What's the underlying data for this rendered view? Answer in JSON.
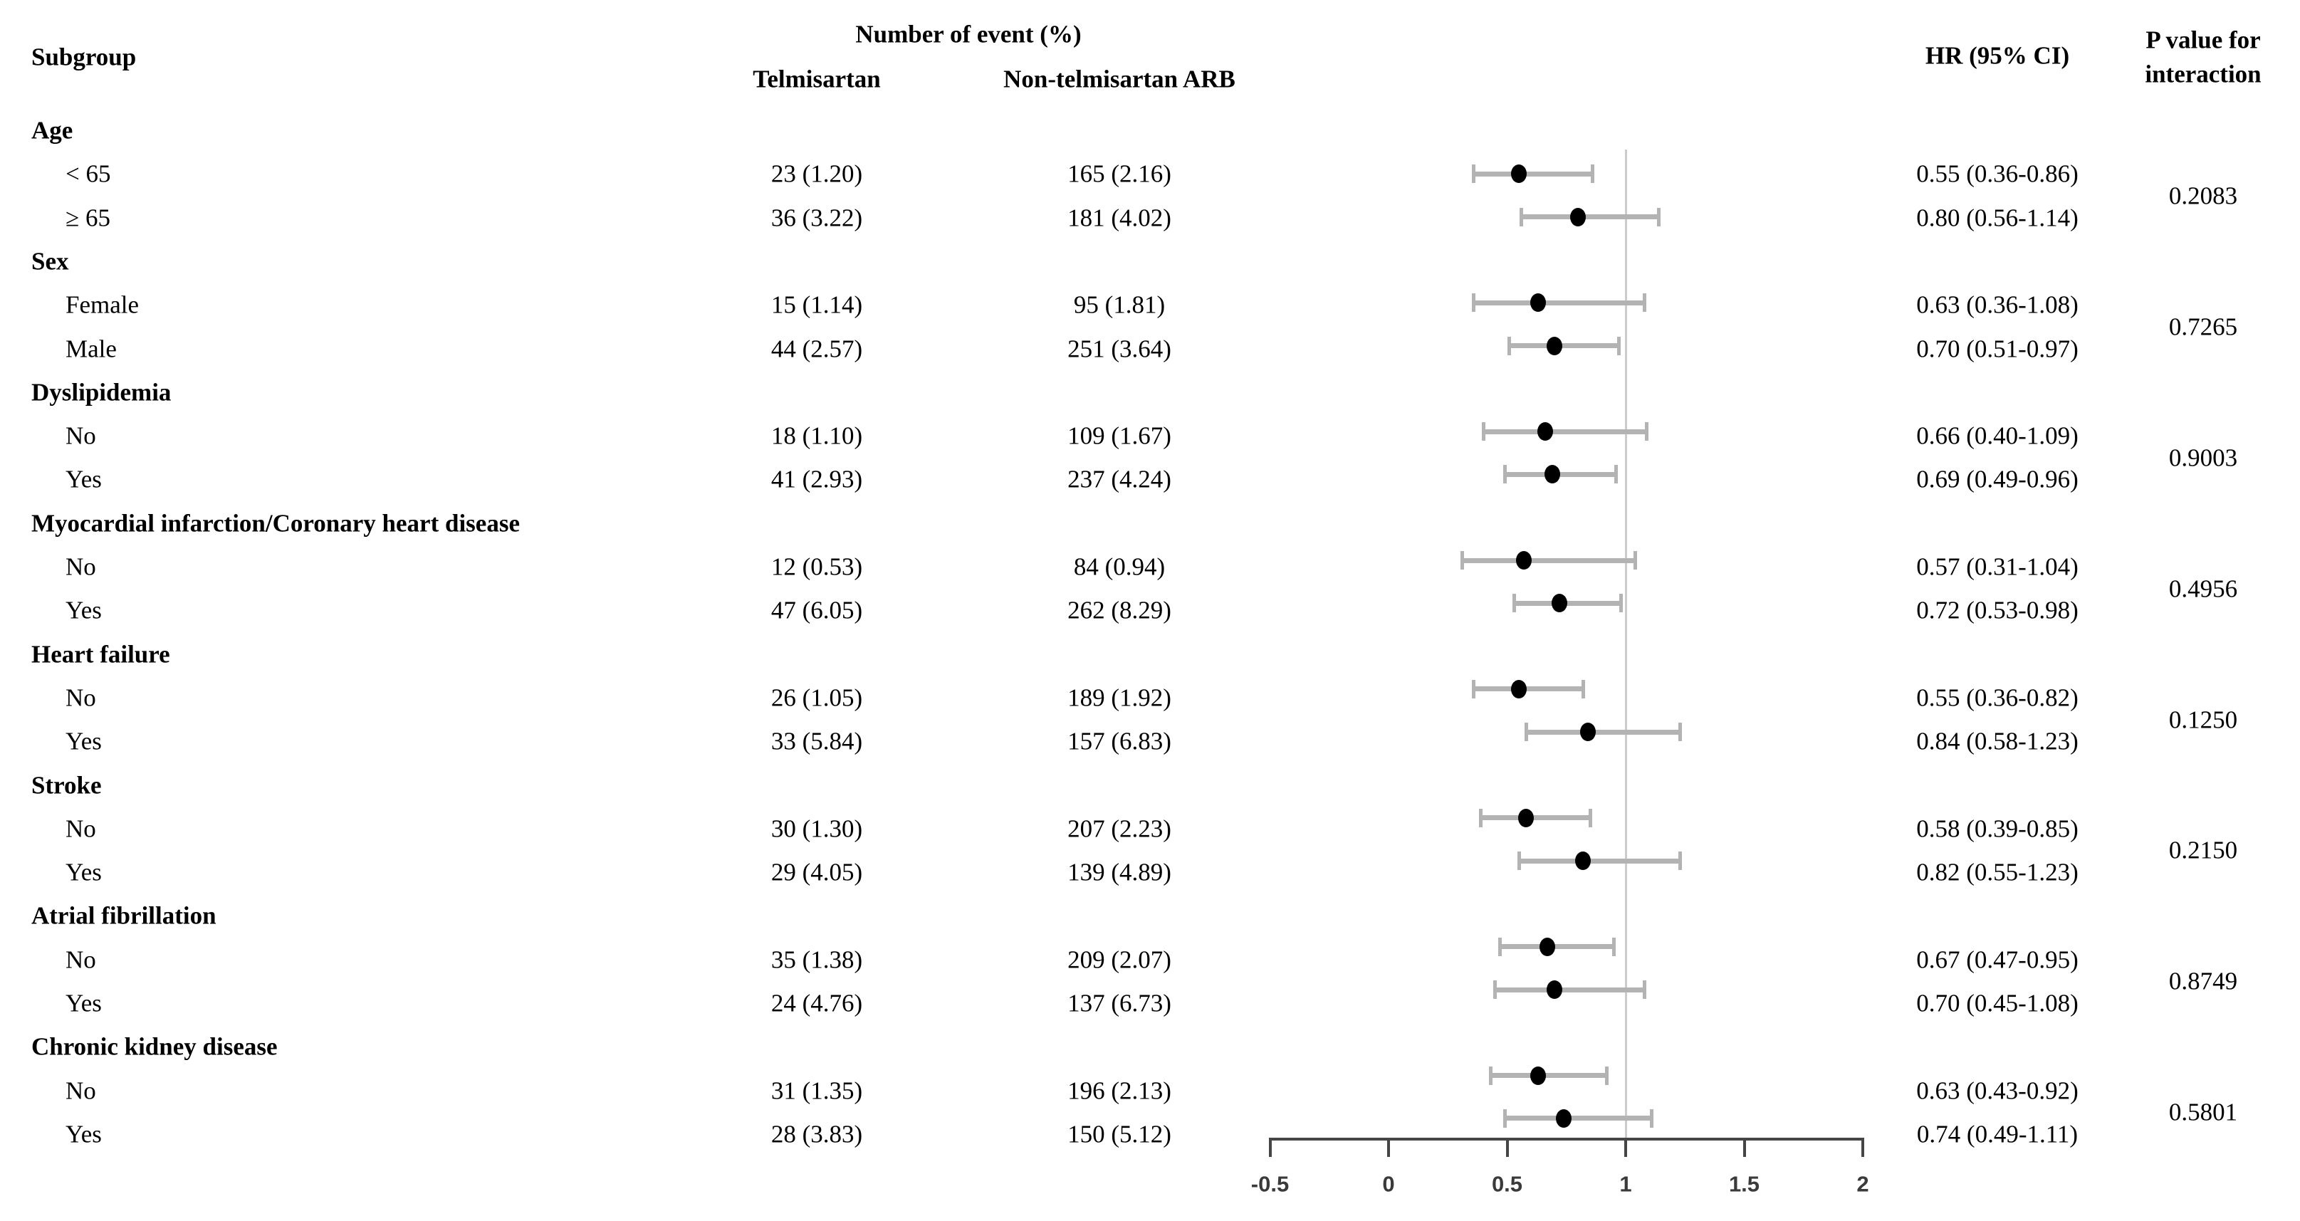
{
  "figure": {
    "headers": {
      "subgroup": "Subgroup",
      "number_of_event": "Number of event (%)",
      "telmisartan": "Telmisartan",
      "non_telmisartan": "Non-telmisartan ARB",
      "hr": "HR (95% CI)",
      "p_value_line1": "P value for",
      "p_value_line2": "interaction"
    }
  },
  "chart_data": {
    "type": "forest",
    "title": "",
    "xlabel": "",
    "legend": "none",
    "columns": [
      "Subgroup",
      "Telmisartan",
      "Non-telmisartan ARB",
      "HR (95% CI)",
      "P value for interaction"
    ],
    "axis": {
      "min": -0.5,
      "max": 2,
      "ticks": [
        "-0.5",
        "0",
        "0.5",
        "1",
        "1.5",
        "2"
      ],
      "tick_values": [
        -0.5,
        0,
        0.5,
        1,
        1.5,
        2
      ],
      "reference_line": 1
    },
    "colors": {
      "text": "#000000",
      "ci_bar": "#b3b3b3",
      "marker": "#000000",
      "reference_line": "#cccccc",
      "axis": "#454545",
      "background": "#ffffff"
    },
    "groups": [
      {
        "label": "Age",
        "p_interaction": "0.2083",
        "rows": [
          {
            "label": "< 65",
            "telmisartan": "23 (1.20)",
            "non_telmisartan": "165 (2.16)",
            "hr": 0.55,
            "ci_low": 0.36,
            "ci_high": 0.86,
            "hr_text": "0.55 (0.36-0.86)"
          },
          {
            "label": "≥ 65",
            "telmisartan": "36 (3.22)",
            "non_telmisartan": "181 (4.02)",
            "hr": 0.8,
            "ci_low": 0.56,
            "ci_high": 1.14,
            "hr_text": "0.80 (0.56-1.14)"
          }
        ]
      },
      {
        "label": "Sex",
        "p_interaction": "0.7265",
        "rows": [
          {
            "label": "Female",
            "telmisartan": "15 (1.14)",
            "non_telmisartan": "95 (1.81)",
            "hr": 0.63,
            "ci_low": 0.36,
            "ci_high": 1.08,
            "hr_text": "0.63 (0.36-1.08)"
          },
          {
            "label": "Male",
            "telmisartan": "44 (2.57)",
            "non_telmisartan": "251 (3.64)",
            "hr": 0.7,
            "ci_low": 0.51,
            "ci_high": 0.97,
            "hr_text": "0.70 (0.51-0.97)"
          }
        ]
      },
      {
        "label": "Dyslipidemia",
        "p_interaction": "0.9003",
        "rows": [
          {
            "label": "No",
            "telmisartan": "18 (1.10)",
            "non_telmisartan": "109 (1.67)",
            "hr": 0.66,
            "ci_low": 0.4,
            "ci_high": 1.09,
            "hr_text": "0.66 (0.40-1.09)"
          },
          {
            "label": "Yes",
            "telmisartan": "41 (2.93)",
            "non_telmisartan": "237 (4.24)",
            "hr": 0.69,
            "ci_low": 0.49,
            "ci_high": 0.96,
            "hr_text": "0.69 (0.49-0.96)"
          }
        ]
      },
      {
        "label": "Myocardial infarction/Coronary heart disease",
        "p_interaction": "0.4956",
        "rows": [
          {
            "label": "No",
            "telmisartan": "12 (0.53)",
            "non_telmisartan": "84 (0.94)",
            "hr": 0.57,
            "ci_low": 0.31,
            "ci_high": 1.04,
            "hr_text": "0.57 (0.31-1.04)"
          },
          {
            "label": "Yes",
            "telmisartan": "47 (6.05)",
            "non_telmisartan": "262 (8.29)",
            "hr": 0.72,
            "ci_low": 0.53,
            "ci_high": 0.98,
            "hr_text": "0.72 (0.53-0.98)"
          }
        ]
      },
      {
        "label": "Heart failure",
        "p_interaction": "0.1250",
        "rows": [
          {
            "label": "No",
            "telmisartan": "26 (1.05)",
            "non_telmisartan": "189 (1.92)",
            "hr": 0.55,
            "ci_low": 0.36,
            "ci_high": 0.82,
            "hr_text": "0.55 (0.36-0.82)"
          },
          {
            "label": "Yes",
            "telmisartan": "33 (5.84)",
            "non_telmisartan": "157 (6.83)",
            "hr": 0.84,
            "ci_low": 0.58,
            "ci_high": 1.23,
            "hr_text": "0.84 (0.58-1.23)"
          }
        ]
      },
      {
        "label": "Stroke",
        "p_interaction": "0.2150",
        "rows": [
          {
            "label": "No",
            "telmisartan": "30 (1.30)",
            "non_telmisartan": "207 (2.23)",
            "hr": 0.58,
            "ci_low": 0.39,
            "ci_high": 0.85,
            "hr_text": "0.58 (0.39-0.85)"
          },
          {
            "label": "Yes",
            "telmisartan": "29 (4.05)",
            "non_telmisartan": "139 (4.89)",
            "hr": 0.82,
            "ci_low": 0.55,
            "ci_high": 1.23,
            "hr_text": "0.82 (0.55-1.23)"
          }
        ]
      },
      {
        "label": "Atrial fibrillation",
        "p_interaction": "0.8749",
        "rows": [
          {
            "label": "No",
            "telmisartan": "35 (1.38)",
            "non_telmisartan": "209 (2.07)",
            "hr": 0.67,
            "ci_low": 0.47,
            "ci_high": 0.95,
            "hr_text": "0.67 (0.47-0.95)"
          },
          {
            "label": "Yes",
            "telmisartan": "24 (4.76)",
            "non_telmisartan": "137 (6.73)",
            "hr": 0.7,
            "ci_low": 0.45,
            "ci_high": 1.08,
            "hr_text": "0.70 (0.45-1.08)"
          }
        ]
      },
      {
        "label": "Chronic kidney disease",
        "p_interaction": "0.5801",
        "rows": [
          {
            "label": "No",
            "telmisartan": "31 (1.35)",
            "non_telmisartan": "196 (2.13)",
            "hr": 0.63,
            "ci_low": 0.43,
            "ci_high": 0.92,
            "hr_text": "0.63 (0.43-0.92)"
          },
          {
            "label": "Yes",
            "telmisartan": "28 (3.83)",
            "non_telmisartan": "150 (5.12)",
            "hr": 0.74,
            "ci_low": 0.49,
            "ci_high": 1.11,
            "hr_text": "0.74 (0.49-1.11)"
          }
        ]
      }
    ]
  }
}
